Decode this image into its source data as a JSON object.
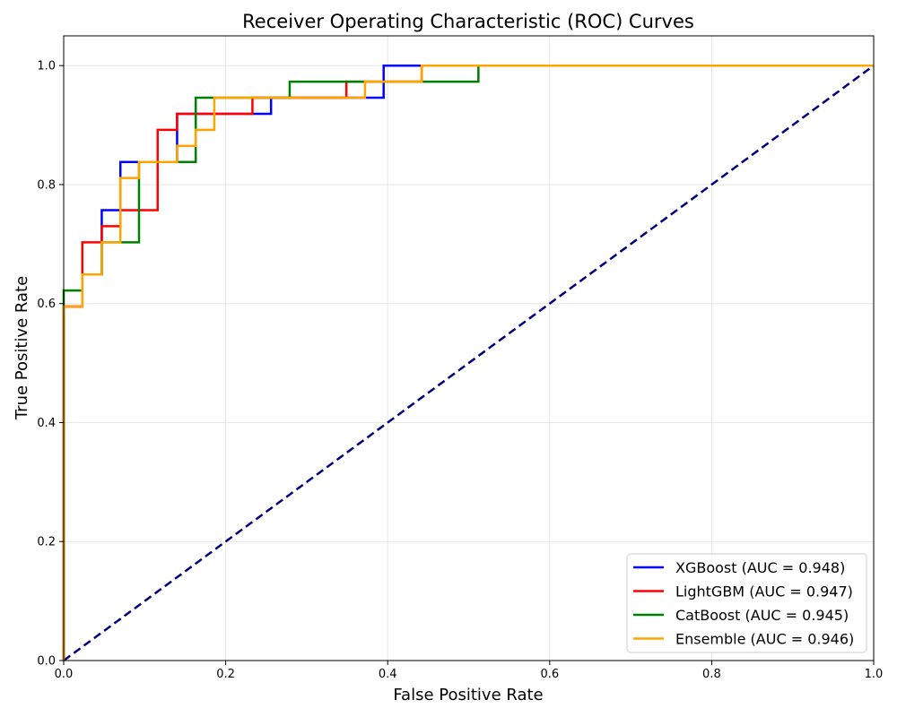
{
  "chart_data": {
    "type": "line",
    "title": "Receiver Operating Characteristic (ROC) Curves",
    "xlabel": "False Positive Rate",
    "ylabel": "True Positive Rate",
    "xlim": [
      0,
      1.0
    ],
    "ylim": [
      0,
      1.05
    ],
    "x_ticks": [
      0,
      0.2,
      0.4,
      0.6,
      0.8,
      1.0
    ],
    "x_tick_labels": [
      "0.0",
      "0.2",
      "0.4",
      "0.6",
      "0.8",
      "1.0"
    ],
    "y_ticks": [
      0,
      0.2,
      0.4,
      0.6,
      0.8,
      1.0
    ],
    "y_tick_labels": [
      "0.0",
      "0.2",
      "0.4",
      "0.6",
      "0.8",
      "1.0"
    ],
    "grid": true,
    "legend_position": "lower-right",
    "series": [
      {
        "name": "XGBoost (AUC = 0.948)",
        "color": "#0000ff",
        "x": [
          0,
          0,
          0.023,
          0.023,
          0.047,
          0.047,
          0.07,
          0.07,
          0.093,
          0.093,
          0.14,
          0.14,
          0.233,
          0.233,
          0.256,
          0.256,
          0.395,
          0.395,
          1.0
        ],
        "y": [
          0,
          0.595,
          0.595,
          0.649,
          0.649,
          0.757,
          0.757,
          0.838,
          0.838,
          0.838,
          0.838,
          0.919,
          0.919,
          0.919,
          0.919,
          0.946,
          0.946,
          1.0,
          1.0
        ]
      },
      {
        "name": "LightGBM (AUC = 0.947)",
        "color": "#ff0000",
        "x": [
          0,
          0,
          0.023,
          0.023,
          0.047,
          0.047,
          0.07,
          0.07,
          0.116,
          0.116,
          0.14,
          0.14,
          0.233,
          0.233,
          0.349,
          0.349,
          0.442,
          0.442,
          1.0
        ],
        "y": [
          0,
          0.595,
          0.595,
          0.703,
          0.703,
          0.73,
          0.73,
          0.757,
          0.757,
          0.892,
          0.892,
          0.919,
          0.919,
          0.946,
          0.946,
          0.973,
          0.973,
          1.0,
          1.0
        ]
      },
      {
        "name": "CatBoost (AUC = 0.945)",
        "color": "#008000",
        "x": [
          0,
          0,
          0.023,
          0.023,
          0.047,
          0.047,
          0.093,
          0.093,
          0.163,
          0.163,
          0.279,
          0.279,
          0.372,
          0.372,
          0.512,
          0.512,
          1.0
        ],
        "y": [
          0,
          0.622,
          0.622,
          0.649,
          0.649,
          0.703,
          0.703,
          0.838,
          0.838,
          0.946,
          0.946,
          0.973,
          0.973,
          0.973,
          0.973,
          1.0,
          1.0
        ]
      },
      {
        "name": "Ensemble (AUC = 0.946)",
        "color": "#ffa500",
        "x": [
          0,
          0,
          0.023,
          0.023,
          0.047,
          0.047,
          0.07,
          0.07,
          0.093,
          0.093,
          0.14,
          0.14,
          0.163,
          0.163,
          0.186,
          0.186,
          0.372,
          0.372,
          0.442,
          0.442,
          1.0
        ],
        "y": [
          0,
          0.595,
          0.595,
          0.649,
          0.649,
          0.703,
          0.703,
          0.811,
          0.811,
          0.838,
          0.838,
          0.865,
          0.865,
          0.892,
          0.892,
          0.946,
          0.946,
          0.973,
          0.973,
          1.0,
          1.0
        ]
      }
    ],
    "reference_line": {
      "color": "#000080",
      "style": "dashed",
      "x": [
        0,
        1
      ],
      "y": [
        0,
        1
      ]
    }
  }
}
